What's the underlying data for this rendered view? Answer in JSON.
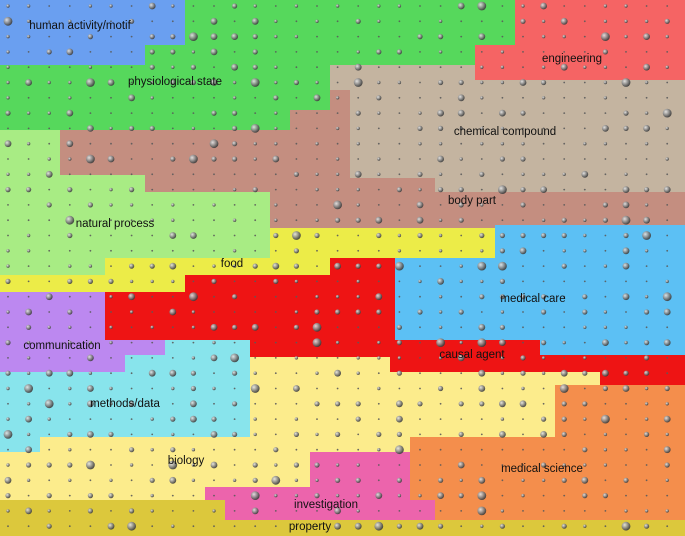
{
  "map": {
    "regions": [
      {
        "id": "human-activity-motif",
        "label": "human activity/motif",
        "color": "#6a9ff0"
      },
      {
        "id": "physiological-state",
        "label": "physiological state",
        "color": "#56d85c"
      },
      {
        "id": "engineering",
        "label": "engineering",
        "color": "#f56464"
      },
      {
        "id": "chemical-compound",
        "label": "chemical compound",
        "color": "#c4b4a0"
      },
      {
        "id": "body-part",
        "label": "body part",
        "color": "#c48e80"
      },
      {
        "id": "natural-process",
        "label": "natural process",
        "color": "#a8ec84"
      },
      {
        "id": "food",
        "label": "food",
        "color": "#ecec48"
      },
      {
        "id": "medical-care",
        "label": "medical care",
        "color": "#5cc0f4"
      },
      {
        "id": "communication",
        "label": "communication",
        "color": "#bc88f0"
      },
      {
        "id": "causal-agent",
        "label": "causal agent",
        "color": "#ee1414"
      },
      {
        "id": "methods-data",
        "label": "methods/data",
        "color": "#88e4ec"
      },
      {
        "id": "biology",
        "label": "biology",
        "color": "#fcec8c"
      },
      {
        "id": "medical-science",
        "label": "medical science",
        "color": "#f48e4c"
      },
      {
        "id": "investigation",
        "label": "investigation",
        "color": "#ec64ac"
      },
      {
        "id": "property",
        "label": "property",
        "color": "#dcc83c"
      }
    ]
  }
}
